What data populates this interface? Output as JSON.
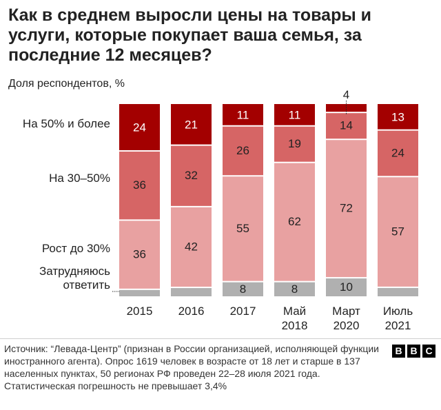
{
  "title": "Как в среднем выросли цены на товары и услуги, которые покупает ваша семья, за последние 12 месяцев?",
  "subtitle": "Доля респондентов, %",
  "chart_data": {
    "type": "bar",
    "stacked": true,
    "categories": [
      [
        "2015"
      ],
      [
        "2016"
      ],
      [
        "2017"
      ],
      [
        "Май",
        "2018"
      ],
      [
        "Март",
        "2020"
      ],
      [
        "Июль",
        "2021"
      ]
    ],
    "series": [
      {
        "name": "Затрудняюсь ответить",
        "values": [
          4,
          5,
          8,
          8,
          10,
          5
        ],
        "labels": [
          "",
          "",
          "8",
          "8",
          "10",
          ""
        ],
        "color": "#b0b0b0"
      },
      {
        "name": "Рост до 30%",
        "values": [
          36,
          42,
          55,
          62,
          72,
          57
        ],
        "labels": [
          "36",
          "42",
          "55",
          "62",
          "72",
          "57"
        ],
        "color": "#e8a1a1"
      },
      {
        "name": "На 30–50%",
        "values": [
          36,
          32,
          26,
          19,
          14,
          24
        ],
        "labels": [
          "36",
          "32",
          "26",
          "19",
          "14",
          "24"
        ],
        "color": "#d66565"
      },
      {
        "name": "На 50% и более",
        "values": [
          24,
          21,
          11,
          11,
          4,
          13
        ],
        "labels": [
          "24",
          "21",
          "11",
          "11",
          "4",
          "13"
        ],
        "color": "#a30000"
      }
    ],
    "legend": {
      "placement": "left",
      "items": [
        {
          "lines": [
            "На 50% и более"
          ]
        },
        {
          "lines": [
            "На 30–50%"
          ]
        },
        {
          "lines": [
            "Рост до 30%"
          ]
        },
        {
          "lines": [
            "Затрудняюсь",
            "ответить"
          ]
        }
      ]
    },
    "ylim": [
      0,
      100
    ],
    "grid": false
  },
  "source": "Источник: “Левада-Центр” (признан в России организацией, исполняющей функции иностранного агента). Опрос 1619 человек в возрасте от 18 лет и старше в 137 населенных пунктах, 50 регионах РФ проведен 22–28 июля 2021 года. Статистическая погрешность не превышает 3,4%",
  "logo": [
    "B",
    "B",
    "C"
  ]
}
